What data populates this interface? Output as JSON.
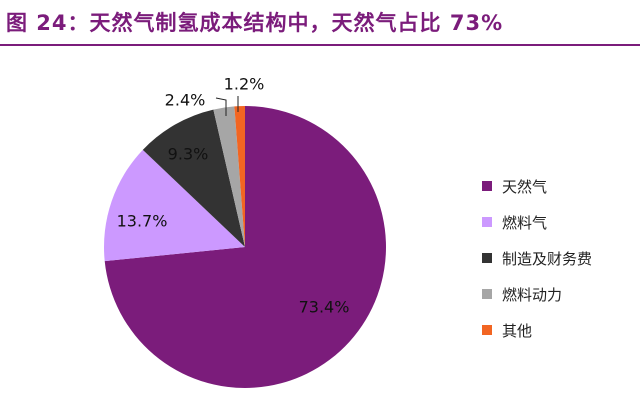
{
  "title": "图 24：天然气制氢成本结构中，天然气占比 73%",
  "chart_data": {
    "type": "pie",
    "title": "图 24：天然气制氢成本结构中，天然气占比 73%",
    "start_angle_deg": 0,
    "direction": "clockwise",
    "slices": [
      {
        "label": "天然气",
        "value": 73.4,
        "display": "73.4%",
        "color": "#7b1c7b"
      },
      {
        "label": "燃料气",
        "value": 13.7,
        "display": "13.7%",
        "color": "#cc99ff"
      },
      {
        "label": "制造及财务费",
        "value": 9.3,
        "display": "9.3%",
        "color": "#333333"
      },
      {
        "label": "燃料动力",
        "value": 2.4,
        "display": "2.4%",
        "color": "#a6a6a6"
      },
      {
        "label": "其他",
        "value": 1.2,
        "display": "1.2%",
        "color": "#f26522"
      }
    ],
    "legend_position": "right"
  }
}
